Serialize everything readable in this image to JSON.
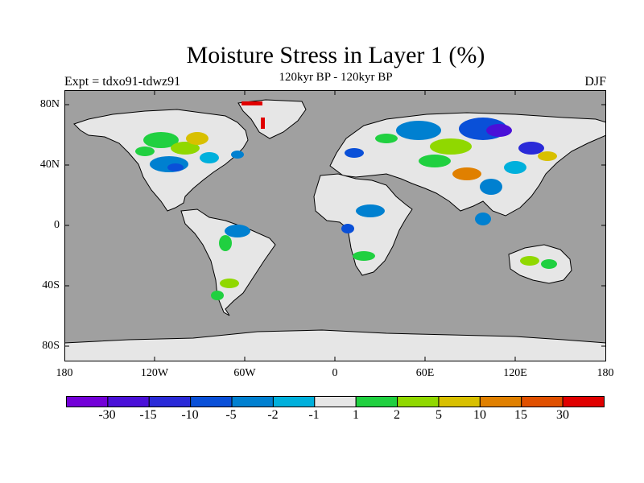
{
  "title": "Moisture Stress in Layer 1 (%)",
  "subtitle": "120kyr BP - 120kyr BP",
  "left_label": "Expt = tdxo91-tdwz91",
  "right_label": "DJF",
  "lat_ticks": [
    "80N",
    "40N",
    "0",
    "40S",
    "80S"
  ],
  "lon_ticks": [
    "180",
    "120W",
    "60W",
    "0",
    "60E",
    "120E",
    "180"
  ],
  "colorbar": {
    "colors": [
      "#7300d8",
      "#4a10d8",
      "#2a2ad8",
      "#0a50d8",
      "#0080d0",
      "#00b0dc",
      "#e6e6e6",
      "#20d040",
      "#90d800",
      "#d8c000",
      "#e08000",
      "#e05000",
      "#e00000"
    ],
    "labels": [
      "-30",
      "-15",
      "-10",
      "-5",
      "-2",
      "-1",
      "1",
      "2",
      "5",
      "10",
      "15",
      "30"
    ]
  },
  "colors": {
    "ocean": "#a0a0a0",
    "land_default": "#e6e6e6"
  }
}
